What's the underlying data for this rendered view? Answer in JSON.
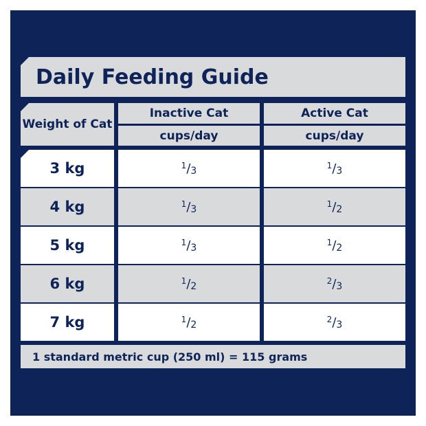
{
  "title": "Daily Feeding Guide",
  "headers": {
    "weight": "Weight of Cat",
    "inactive": "Inactive Cat",
    "active": "Active Cat",
    "unit": "cups/day"
  },
  "rows": [
    {
      "weight": "3 kg",
      "inactive": [
        "1",
        "3"
      ],
      "active": [
        "1",
        "3"
      ]
    },
    {
      "weight": "4 kg",
      "inactive": [
        "1",
        "3"
      ],
      "active": [
        "1",
        "2"
      ]
    },
    {
      "weight": "5 kg",
      "inactive": [
        "1",
        "3"
      ],
      "active": [
        "1",
        "2"
      ]
    },
    {
      "weight": "6 kg",
      "inactive": [
        "1",
        "2"
      ],
      "active": [
        "2",
        "3"
      ]
    },
    {
      "weight": "7 kg",
      "inactive": [
        "1",
        "2"
      ],
      "active": [
        "2",
        "3"
      ]
    }
  ],
  "footer": "1 standard metric cup (250 ml) =  115 grams",
  "colors": {
    "navy": "#0e2357",
    "gray": "#d9dadc"
  }
}
